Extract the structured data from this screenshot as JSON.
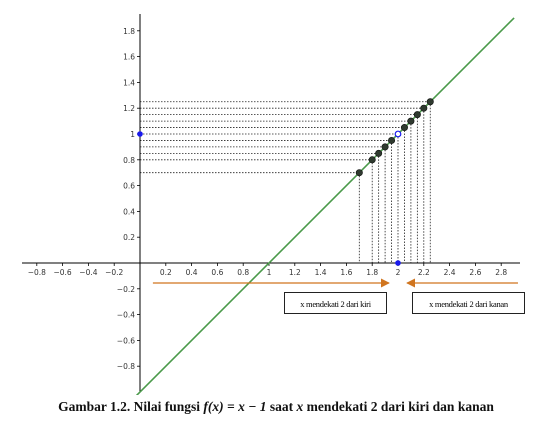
{
  "chart_data": {
    "type": "line",
    "function_label": "f(x) = x − 1",
    "line": {
      "x": [
        -0.15,
        2.9
      ],
      "y": [
        -1.15,
        1.9
      ],
      "color": "#4a9a4a"
    },
    "xlim": [
      -0.97,
      2.95
    ],
    "ylim": [
      -0.98,
      1.92
    ],
    "x_ticks": [
      -0.8,
      -0.6,
      -0.4,
      -0.2,
      0.2,
      0.4,
      0.6,
      0.8,
      1,
      1.2,
      1.4,
      1.6,
      1.8,
      2,
      2.2,
      2.4,
      2.6,
      2.8
    ],
    "x_tick_labels": [
      "−0.8",
      "−0.6",
      "−0.4",
      "−0.2",
      "0.2",
      "0.4",
      "0.6",
      "0.8",
      "1",
      "1.2",
      "1.4",
      "1.6",
      "1.8",
      "2",
      "2.2",
      "2.4",
      "2.6",
      "2.8"
    ],
    "y_ticks": [
      1.8,
      1.6,
      1.4,
      1.2,
      1,
      0.8,
      0.6,
      0.4,
      0.2,
      -0.2,
      -0.4,
      -0.6,
      -0.8
    ],
    "y_tick_labels": [
      "1.8",
      "1.6",
      "1.4",
      "1.2",
      "1",
      "0.8",
      "0.6",
      "0.4",
      "0.2",
      "−0.2",
      "−0.4",
      "−0.6",
      "−0.8"
    ],
    "points_left": [
      {
        "x": 1.7,
        "y": 0.7
      },
      {
        "x": 1.8,
        "y": 0.8
      },
      {
        "x": 1.85,
        "y": 0.85
      },
      {
        "x": 1.9,
        "y": 0.9
      },
      {
        "x": 1.95,
        "y": 0.95
      }
    ],
    "points_right": [
      {
        "x": 2.05,
        "y": 1.05
      },
      {
        "x": 2.1,
        "y": 1.1
      },
      {
        "x": 2.15,
        "y": 1.15
      },
      {
        "x": 2.2,
        "y": 1.2
      },
      {
        "x": 2.25,
        "y": 1.25
      }
    ],
    "open_point": {
      "x": 2,
      "y": 1
    },
    "marker_points": [
      {
        "x": 2,
        "y": 0
      },
      {
        "x": 0,
        "y": 1
      }
    ],
    "point_color": "#2f3a2f",
    "marker_color": "#1a1aee",
    "arrow_color": "#d0751f",
    "arrow_left_x": [
      0.1,
      1.93
    ],
    "arrow_right_x": [
      2.07,
      2.93
    ],
    "annotations": {
      "left": "x mendekati 2 dari kiri",
      "right": "x mendekati 2 dari kanan"
    }
  },
  "caption": {
    "prefix": "Gambar 1.2. Nilai fungsi ",
    "func": "f(x) = x − 1",
    "mid": " saat ",
    "var": "x",
    "suffix": " mendekati 2 dari kiri dan kanan"
  }
}
